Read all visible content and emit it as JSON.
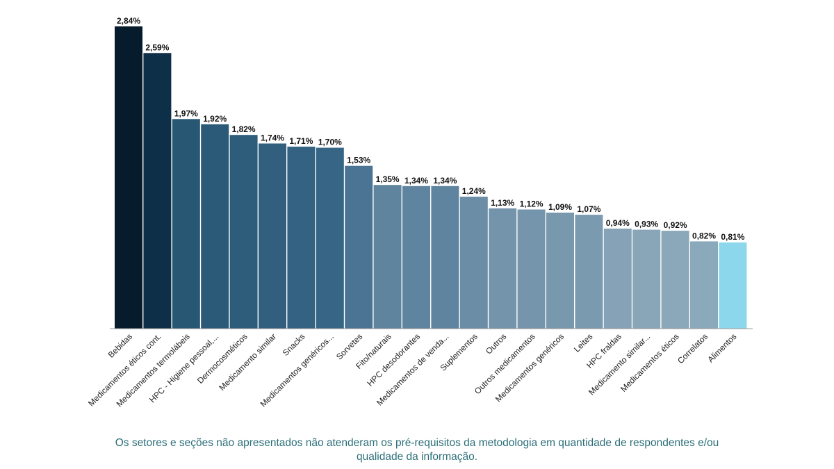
{
  "chart_data": {
    "type": "bar",
    "categories": [
      "Bebidas",
      "Medicamentos éticos cont.",
      "Medicamentos termolábeis",
      "HPC - Higiene pessoal,...",
      "Dermocosméticos",
      "Medicamento similar",
      "Snacks",
      "Medicamentos genéricos...",
      "Sorvetes",
      "Fito/naturais",
      "HPC desodorantes",
      "Medicamentos de venda...",
      "Suplementos",
      "Outros",
      "Outros medicamentos",
      "Medicamentos genéricos",
      "Leites",
      "HPC fraldas",
      "Medicamento similar...",
      "Medicamentos éticos",
      "Correlatos",
      "Alimentos"
    ],
    "values": [
      2.84,
      2.59,
      1.97,
      1.92,
      1.82,
      1.74,
      1.71,
      1.7,
      1.53,
      1.35,
      1.34,
      1.34,
      1.24,
      1.13,
      1.12,
      1.09,
      1.07,
      0.94,
      0.93,
      0.92,
      0.82,
      0.81
    ],
    "value_labels": [
      "2,84%",
      "2,59%",
      "1,97%",
      "1,92%",
      "1,82%",
      "1,74%",
      "1,71%",
      "1,70%",
      "1,53%",
      "1,35%",
      "1,34%",
      "1,34%",
      "1,24%",
      "1,13%",
      "1,12%",
      "1,09%",
      "1,07%",
      "0,94%",
      "0,93%",
      "0,92%",
      "0,82%",
      "0,81%"
    ],
    "colors": [
      "#061c2c",
      "#0d2f47",
      "#285774",
      "#2b5a78",
      "#2e5d7b",
      "#325f7e",
      "#336282",
      "#366585",
      "#4a7394",
      "#5e849e",
      "#5f84a0",
      "#5f84a0",
      "#6b8da6",
      "#7394ab",
      "#7595ad",
      "#7898ae",
      "#7a9aaf",
      "#86a2b6",
      "#89a5b8",
      "#8ba7ba",
      "#8aa9bb",
      "#8cd7eb"
    ],
    "title": "",
    "xlabel": "",
    "ylabel": "",
    "ylim": [
      0,
      2.84
    ],
    "grid": false,
    "legend": "none"
  },
  "footnote": "Os setores e seções não apresentados não atenderam os pré-requisitos da metodologia em quantidade de respondentes e/ou qualidade da informação."
}
